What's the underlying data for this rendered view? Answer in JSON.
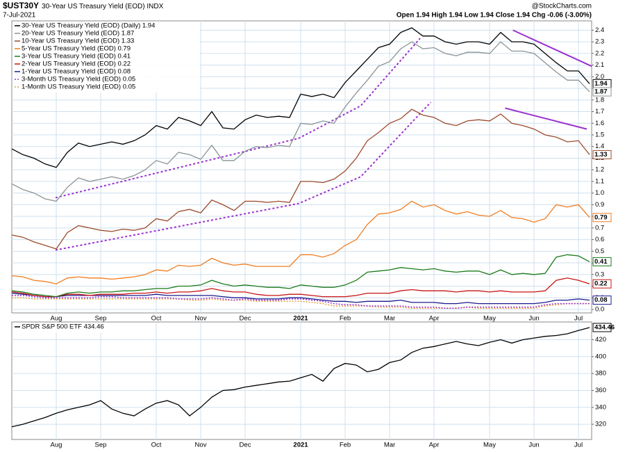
{
  "chart_data": [
    {
      "type": "line",
      "title": "$UST30Y",
      "subtitle": "30-Year US Treasury Yield (EOD) INDX",
      "date": "7-Jul-2021",
      "quote": "Open 1.94 High 1.94 Low 1.94 Close 1.94 Chg -0.06 (-3.00%)",
      "credit": "@StockCharts.com",
      "categories": [
        null,
        null,
        null,
        null,
        "Aug",
        null,
        null,
        null,
        "Sep",
        null,
        null,
        null,
        null,
        "Oct",
        null,
        null,
        null,
        "Nov",
        null,
        null,
        null,
        "Dec",
        null,
        null,
        null,
        null,
        "2021",
        null,
        null,
        null,
        "Feb",
        null,
        null,
        null,
        "Mar",
        null,
        null,
        null,
        "Apr",
        null,
        null,
        null,
        null,
        "May",
        null,
        null,
        null,
        "Jun",
        null,
        null,
        null,
        "Jul",
        null
      ],
      "ylim": [
        -0.03,
        2.48
      ],
      "yticks": [
        {
          "value": 0.0,
          "label": "0.0"
        },
        0.1,
        0.2,
        0.3,
        0.4,
        0.5,
        0.6,
        0.7,
        0.8,
        0.9,
        {
          "value": 1.0,
          "label": "1.0"
        },
        1.1,
        1.2,
        1.3,
        1.4,
        1.5,
        1.6,
        1.7,
        1.8,
        1.9,
        {
          "value": 2.0,
          "label": "2.0"
        },
        2.1,
        2.2,
        2.3,
        2.4
      ],
      "grid": true,
      "legend": "upper left",
      "series": [
        {
          "name": "30-Year US Treasury Yield (EOD) (Daily) 1.94",
          "color": "#000000",
          "style": "solid",
          "end_label": true,
          "values": [
            1.38,
            1.33,
            1.3,
            1.25,
            1.22,
            1.35,
            1.43,
            1.4,
            1.42,
            1.44,
            1.42,
            1.45,
            1.5,
            1.58,
            1.55,
            1.65,
            1.62,
            1.58,
            1.7,
            1.56,
            1.55,
            1.63,
            1.67,
            1.65,
            1.66,
            1.65,
            1.85,
            1.83,
            1.85,
            1.82,
            1.95,
            2.05,
            2.15,
            2.25,
            2.28,
            2.38,
            2.42,
            2.35,
            2.35,
            2.3,
            2.28,
            2.3,
            2.3,
            2.28,
            2.38,
            2.3,
            2.3,
            2.28,
            2.2,
            2.12,
            2.05,
            2.05,
            1.94
          ]
        },
        {
          "name": "20-Year US Treasury Yield (EOD) 1.87",
          "color": "#8a9396",
          "style": "solid",
          "end_label": true,
          "values": [
            1.08,
            1.03,
            1.0,
            0.95,
            0.93,
            1.05,
            1.13,
            1.1,
            1.12,
            1.14,
            1.12,
            1.15,
            1.2,
            1.28,
            1.25,
            1.35,
            1.33,
            1.29,
            1.41,
            1.28,
            1.28,
            1.36,
            1.4,
            1.39,
            1.41,
            1.4,
            1.6,
            1.59,
            1.62,
            1.6,
            1.74,
            1.86,
            1.97,
            2.09,
            2.13,
            2.24,
            2.3,
            2.24,
            2.25,
            2.2,
            2.18,
            2.21,
            2.21,
            2.2,
            2.3,
            2.22,
            2.22,
            2.2,
            2.12,
            2.04,
            1.97,
            1.97,
            1.87
          ]
        },
        {
          "name": "10-Year US Treasury Yield (EOD) 1.33",
          "color": "#9c4a2a",
          "style": "solid",
          "end_label": true,
          "values": [
            0.64,
            0.62,
            0.58,
            0.55,
            0.52,
            0.66,
            0.72,
            0.7,
            0.68,
            0.67,
            0.69,
            0.68,
            0.7,
            0.78,
            0.76,
            0.84,
            0.86,
            0.83,
            0.94,
            0.9,
            0.85,
            0.93,
            0.93,
            0.92,
            0.93,
            0.92,
            1.1,
            1.1,
            1.09,
            1.12,
            1.19,
            1.3,
            1.45,
            1.52,
            1.6,
            1.64,
            1.72,
            1.67,
            1.65,
            1.6,
            1.58,
            1.62,
            1.63,
            1.62,
            1.68,
            1.6,
            1.58,
            1.55,
            1.5,
            1.48,
            1.44,
            1.45,
            1.33
          ]
        },
        {
          "name": "5-Year US Treasury Yield (EOD) 0.79",
          "color": "#f07c1e",
          "style": "solid",
          "end_label": true,
          "values": [
            0.29,
            0.28,
            0.25,
            0.24,
            0.22,
            0.27,
            0.28,
            0.27,
            0.27,
            0.26,
            0.27,
            0.28,
            0.3,
            0.34,
            0.33,
            0.38,
            0.37,
            0.38,
            0.44,
            0.4,
            0.38,
            0.39,
            0.37,
            0.37,
            0.37,
            0.37,
            0.47,
            0.47,
            0.45,
            0.48,
            0.55,
            0.6,
            0.73,
            0.82,
            0.83,
            0.86,
            0.93,
            0.88,
            0.9,
            0.85,
            0.82,
            0.84,
            0.81,
            0.8,
            0.85,
            0.79,
            0.78,
            0.75,
            0.78,
            0.9,
            0.88,
            0.9,
            0.79
          ]
        },
        {
          "name": "3-Year US Treasury Yield (EOD) 0.41",
          "color": "#1a7a1a",
          "style": "solid",
          "end_label": true,
          "values": [
            0.16,
            0.15,
            0.13,
            0.12,
            0.11,
            0.14,
            0.15,
            0.14,
            0.15,
            0.15,
            0.16,
            0.16,
            0.17,
            0.18,
            0.18,
            0.2,
            0.2,
            0.21,
            0.25,
            0.22,
            0.2,
            0.21,
            0.2,
            0.19,
            0.19,
            0.18,
            0.21,
            0.2,
            0.19,
            0.19,
            0.21,
            0.25,
            0.32,
            0.33,
            0.34,
            0.36,
            0.35,
            0.34,
            0.35,
            0.33,
            0.32,
            0.33,
            0.33,
            0.3,
            0.34,
            0.3,
            0.31,
            0.3,
            0.31,
            0.45,
            0.47,
            0.46,
            0.41
          ]
        },
        {
          "name": "2-Year US Treasury Yield (EOD) 0.22",
          "color": "#c81414",
          "style": "solid",
          "end_label": true,
          "values": [
            0.15,
            0.14,
            0.12,
            0.11,
            0.11,
            0.13,
            0.13,
            0.12,
            0.13,
            0.13,
            0.13,
            0.14,
            0.14,
            0.15,
            0.14,
            0.15,
            0.15,
            0.16,
            0.18,
            0.16,
            0.15,
            0.15,
            0.13,
            0.12,
            0.12,
            0.13,
            0.13,
            0.12,
            0.11,
            0.11,
            0.11,
            0.12,
            0.14,
            0.14,
            0.14,
            0.16,
            0.17,
            0.16,
            0.16,
            0.16,
            0.15,
            0.16,
            0.16,
            0.15,
            0.16,
            0.15,
            0.15,
            0.15,
            0.16,
            0.25,
            0.27,
            0.25,
            0.22
          ]
        },
        {
          "name": "1-Year US Treasury Yield (EOD) 0.08",
          "color": "#1a1a8c",
          "style": "solid",
          "end_label": true,
          "values": [
            0.14,
            0.13,
            0.12,
            0.11,
            0.11,
            0.12,
            0.12,
            0.12,
            0.12,
            0.12,
            0.12,
            0.12,
            0.12,
            0.13,
            0.12,
            0.12,
            0.12,
            0.12,
            0.12,
            0.11,
            0.1,
            0.1,
            0.09,
            0.09,
            0.09,
            0.1,
            0.1,
            0.09,
            0.08,
            0.07,
            0.07,
            0.06,
            0.07,
            0.07,
            0.07,
            0.08,
            0.06,
            0.06,
            0.06,
            0.05,
            0.05,
            0.06,
            0.05,
            0.05,
            0.05,
            0.05,
            0.05,
            0.05,
            0.06,
            0.08,
            0.08,
            0.09,
            0.08
          ]
        },
        {
          "name": "3-Month US Treasury Yield (EOD) 0.05",
          "color": "#9b30d0",
          "style": "dotted",
          "end_label": false,
          "values": [
            0.12,
            0.12,
            0.11,
            0.1,
            0.1,
            0.1,
            0.1,
            0.1,
            0.11,
            0.11,
            0.1,
            0.1,
            0.1,
            0.1,
            0.1,
            0.09,
            0.09,
            0.09,
            0.1,
            0.09,
            0.08,
            0.09,
            0.08,
            0.08,
            0.08,
            0.09,
            0.09,
            0.08,
            0.07,
            0.05,
            0.04,
            0.04,
            0.03,
            0.03,
            0.03,
            0.03,
            0.02,
            0.02,
            0.02,
            0.01,
            0.01,
            0.02,
            0.02,
            0.02,
            0.02,
            0.02,
            0.02,
            0.02,
            0.04,
            0.05,
            0.05,
            0.05,
            0.05
          ]
        },
        {
          "name": "1-Month US Treasury Yield (EOD) 0.05",
          "color": "#e8a040",
          "style": "dotted",
          "end_label": false,
          "values": [
            0.1,
            0.1,
            0.09,
            0.09,
            0.09,
            0.09,
            0.09,
            0.09,
            0.09,
            0.09,
            0.09,
            0.09,
            0.09,
            0.09,
            0.09,
            0.09,
            0.08,
            0.08,
            0.09,
            0.08,
            0.08,
            0.08,
            0.07,
            0.07,
            0.07,
            0.07,
            0.07,
            0.06,
            0.05,
            0.03,
            0.03,
            0.03,
            0.03,
            0.02,
            0.02,
            0.02,
            0.01,
            0.01,
            0.01,
            0.01,
            0.01,
            0.02,
            0.01,
            0.01,
            0.01,
            0.01,
            0.01,
            0.01,
            0.03,
            0.04,
            0.05,
            0.05,
            0.05
          ]
        }
      ],
      "trendlines": [
        {
          "color": "#9b30d0",
          "style": "dotted",
          "x": [
            3.94,
            25.8,
            31.4,
            36.75
          ],
          "y": [
            0.96,
            1.47,
            1.75,
            2.33
          ]
        },
        {
          "color": "#9b30d0",
          "style": "dotted",
          "x": [
            3.94,
            25.8,
            31.4,
            37.7
          ],
          "y": [
            0.51,
            0.91,
            1.14,
            1.78
          ]
        },
        {
          "color": "#9b30d0",
          "style": "solid",
          "x": [
            45.1,
            52.2
          ],
          "y": [
            2.4,
            2.09
          ]
        },
        {
          "color": "#9b30d0",
          "style": "solid",
          "x": [
            44.4,
            51.75
          ],
          "y": [
            1.73,
            1.55
          ]
        }
      ]
    },
    {
      "type": "line",
      "categories": [
        null,
        null,
        null,
        null,
        "Aug",
        null,
        null,
        null,
        "Sep",
        null,
        null,
        null,
        null,
        "Oct",
        null,
        null,
        null,
        "Nov",
        null,
        null,
        null,
        "Dec",
        null,
        null,
        null,
        null,
        "2021",
        null,
        null,
        null,
        "Feb",
        null,
        null,
        null,
        "Mar",
        null,
        null,
        null,
        "Apr",
        null,
        null,
        null,
        null,
        "May",
        null,
        null,
        null,
        "Jun",
        null,
        null,
        null,
        "Jul",
        null
      ],
      "ylim": [
        302,
        441
      ],
      "yticks": [
        320,
        340,
        360,
        380,
        400,
        420
      ],
      "grid": true,
      "legend": "upper left",
      "series": [
        {
          "name": "SPDR S&P 500 ETF 434.46",
          "color": "#000000",
          "style": "solid",
          "end_label": true,
          "values": [
            317,
            320,
            324,
            328,
            333,
            337,
            340,
            343,
            348,
            338,
            333,
            330,
            338,
            345,
            348,
            343,
            330,
            340,
            352,
            360,
            361,
            364,
            366,
            368,
            370,
            371,
            375,
            379,
            371,
            386,
            392,
            390,
            382,
            385,
            393,
            396,
            405,
            410,
            412,
            415,
            418,
            415,
            413,
            417,
            420,
            416,
            420,
            422,
            424,
            425,
            427,
            431,
            434.46
          ]
        }
      ]
    }
  ]
}
